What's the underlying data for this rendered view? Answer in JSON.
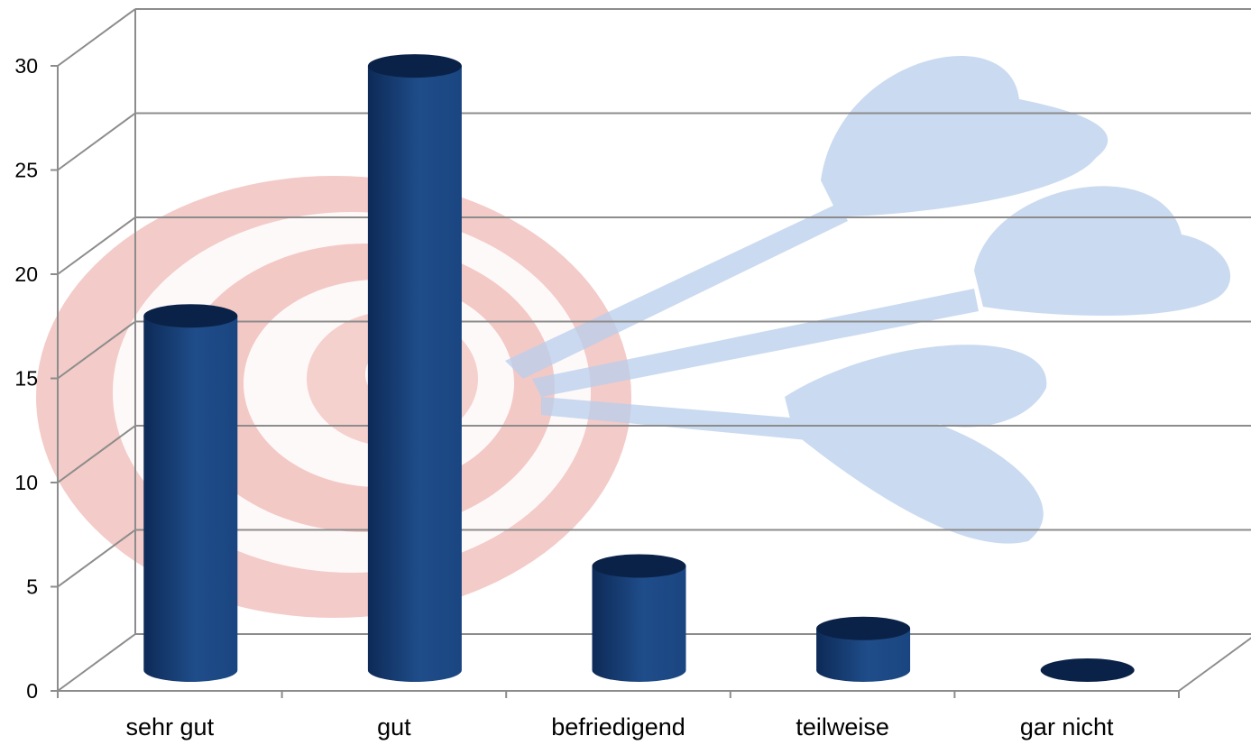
{
  "chart_data": {
    "type": "bar",
    "style": "3d-cylinder",
    "title": "",
    "xlabel": "",
    "ylabel": "",
    "categories": [
      "sehr gut",
      "gut",
      "befriedigend",
      "teilweise",
      "gar nicht"
    ],
    "values": [
      17,
      29,
      5,
      2,
      0
    ],
    "ylim": [
      0,
      30
    ],
    "yticks": [
      0,
      5,
      10,
      15,
      20,
      25,
      30
    ],
    "grid": true,
    "legend": "none",
    "background": "dartboard-with-darts",
    "colors": {
      "bar_dark": "#0d2a57",
      "bar_mid": "#1b4480",
      "bar_light": "#23538f",
      "bar_top": "#0a2248",
      "grid": "#8c8c8c",
      "target_red": "#e8a09a",
      "dart_blue": "#9fbde6"
    }
  }
}
